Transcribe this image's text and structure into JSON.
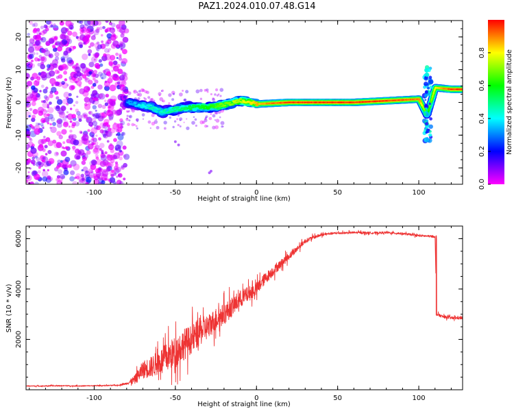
{
  "figure": {
    "title": "PAZ1.2024.010.07.48.G14"
  },
  "chart_data": [
    {
      "type": "heatmap",
      "xlabel": "Height of straight line (km)",
      "ylabel": "Frequency (Hz)",
      "xlim": [
        -142,
        127
      ],
      "ylim": [
        -25,
        25
      ],
      "xticks": [
        -100,
        -50,
        0,
        50,
        100
      ],
      "yticks": [
        -20,
        -10,
        0,
        10,
        20
      ],
      "colorbar": {
        "label": "Normalized spectral amplitude",
        "range": [
          0,
          1
        ],
        "ticks": [
          0.0,
          0.2,
          0.4,
          0.6,
          0.8
        ],
        "colormap": "gist_rainbow_r",
        "stops": [
          "#ff0000",
          "#ff8000",
          "#ffff00",
          "#80ff00",
          "#00ff00",
          "#00ff80",
          "#00ffff",
          "#0080ff",
          "#0000ff",
          "#8000ff",
          "#ff00ff"
        ]
      },
      "ridge": [
        {
          "height": -80,
          "frequency": 0.0,
          "amplitude": 0.3
        },
        {
          "height": -72,
          "frequency": -0.8,
          "amplitude": 0.4
        },
        {
          "height": -65,
          "frequency": -1.5,
          "amplitude": 0.45
        },
        {
          "height": -58,
          "frequency": -3.0,
          "amplitude": 0.45
        },
        {
          "height": -50,
          "frequency": -2.0,
          "amplitude": 0.5
        },
        {
          "height": -40,
          "frequency": -1.5,
          "amplitude": 0.55
        },
        {
          "height": -30,
          "frequency": -1.5,
          "amplitude": 0.6
        },
        {
          "height": -20,
          "frequency": -0.8,
          "amplitude": 0.7
        },
        {
          "height": -10,
          "frequency": 0.5,
          "amplitude": 0.75
        },
        {
          "height": 0,
          "frequency": -0.5,
          "amplitude": 0.85
        },
        {
          "height": 20,
          "frequency": 0.0,
          "amplitude": 0.95
        },
        {
          "height": 40,
          "frequency": 0.0,
          "amplitude": 0.95
        },
        {
          "height": 60,
          "frequency": 0.0,
          "amplitude": 0.95
        },
        {
          "height": 80,
          "frequency": 0.5,
          "amplitude": 0.95
        },
        {
          "height": 100,
          "frequency": 1.0,
          "amplitude": 0.9
        },
        {
          "height": 105,
          "frequency": -4.0,
          "amplitude": 0.6
        },
        {
          "height": 110,
          "frequency": 4.5,
          "amplitude": 0.8
        },
        {
          "height": 120,
          "frequency": 4.0,
          "amplitude": 0.95
        },
        {
          "height": 127,
          "frequency": 4.0,
          "amplitude": 0.95
        }
      ],
      "noise_region": {
        "height_range": [
          -142,
          -80
        ],
        "frequency_range": [
          -25,
          25
        ],
        "amplitude": 0.15
      }
    },
    {
      "type": "line",
      "xlabel": "Height of straight line (km)",
      "ylabel": "SNR (10 * v/v)",
      "xlim": [
        -142,
        127
      ],
      "ylim": [
        0,
        6500
      ],
      "xticks": [
        -100,
        -50,
        0,
        50,
        100
      ],
      "yticks": [
        2000,
        4000,
        6000
      ],
      "color": "#ee3333",
      "x": [
        -142,
        -130,
        -120,
        -110,
        -100,
        -90,
        -85,
        -80,
        -75,
        -70,
        -65,
        -60,
        -55,
        -50,
        -45,
        -40,
        -35,
        -30,
        -25,
        -20,
        -15,
        -10,
        -5,
        0,
        5,
        10,
        15,
        20,
        25,
        30,
        35,
        40,
        45,
        50,
        55,
        60,
        65,
        70,
        75,
        80,
        85,
        90,
        95,
        100,
        105,
        110,
        111,
        115,
        120,
        127
      ],
      "values": [
        150,
        150,
        160,
        150,
        160,
        170,
        180,
        250,
        400,
        800,
        900,
        1100,
        1300,
        1500,
        1800,
        2000,
        2300,
        2500,
        2800,
        3000,
        3300,
        3600,
        3800,
        4000,
        4400,
        4700,
        5000,
        5300,
        5600,
        5900,
        6050,
        6150,
        6200,
        6220,
        6230,
        6240,
        6240,
        6230,
        6230,
        6240,
        6220,
        6200,
        6160,
        6120,
        6100,
        6080,
        3000,
        2900,
        2850,
        2850
      ],
      "noise_amplitude": [
        30,
        30,
        30,
        30,
        30,
        30,
        30,
        60,
        250,
        500,
        600,
        700,
        800,
        900,
        900,
        800,
        800,
        700,
        650,
        600,
        550,
        500,
        420,
        380,
        330,
        280,
        240,
        200,
        160,
        120,
        100,
        80,
        70,
        60,
        60,
        60,
        60,
        60,
        60,
        60,
        60,
        60,
        60,
        60,
        60,
        60,
        80,
        80,
        80,
        80
      ]
    }
  ]
}
